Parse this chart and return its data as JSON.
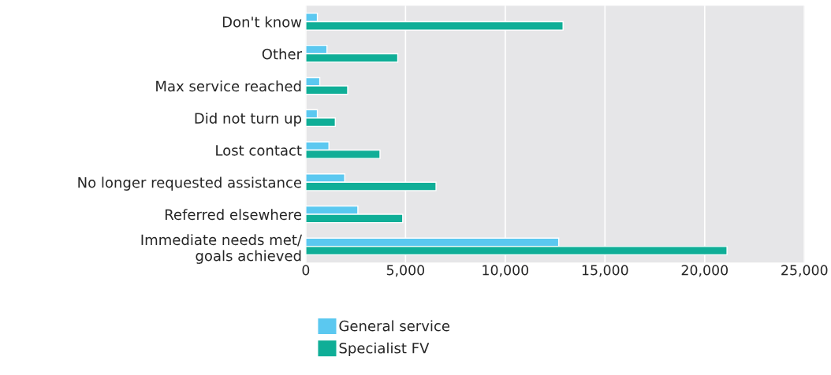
{
  "chart_data": {
    "type": "bar",
    "orientation": "horizontal",
    "categories": [
      "Don't know",
      "Other",
      "Max service reached",
      "Did not turn up",
      "Lost contact",
      "No longer requested assistance",
      "Referred elsewhere",
      "Immediate needs met/\ngoals achieved"
    ],
    "series": [
      {
        "name": "General service",
        "color": "#5bc8f0",
        "values": [
          580,
          1060,
          700,
          580,
          1160,
          1950,
          2610,
          12680
        ]
      },
      {
        "name": "Specialist FV",
        "color": "#0fae97",
        "values": [
          12900,
          4610,
          2100,
          1480,
          3720,
          6530,
          4860,
          21120
        ]
      }
    ],
    "xlim": [
      0,
      25000
    ],
    "xticks": [
      {
        "value": 0,
        "label": "0"
      },
      {
        "value": 5000,
        "label": "5,000"
      },
      {
        "value": 10000,
        "label": "10,000"
      },
      {
        "value": 15000,
        "label": "15,000"
      },
      {
        "value": 20000,
        "label": "20,000"
      },
      {
        "value": 25000,
        "label": "25,000"
      }
    ],
    "grid": "x",
    "legend": "bottom"
  }
}
